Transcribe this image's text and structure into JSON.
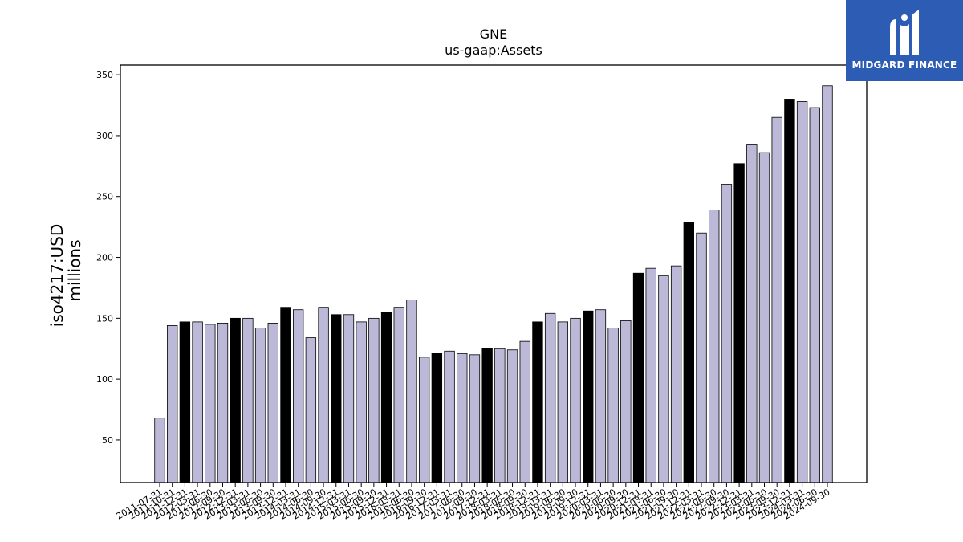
{
  "logo": {
    "text": "MIDGARD FINANCE",
    "icon": "midgard-logo-icon",
    "background": "#2c5cb4"
  },
  "chart_data": {
    "type": "bar",
    "title": "GNE",
    "subtitle": "us-gaap:Assets",
    "ylabel": [
      "iso4217:USD",
      "millions"
    ],
    "xlabel": "",
    "ylim": [
      15,
      358
    ],
    "yticks": [
      50,
      100,
      150,
      200,
      250,
      300,
      350
    ],
    "grid": false,
    "colors": {
      "regular": "#bcb8d8",
      "highlight": "#000000",
      "edge": "#000000"
    },
    "categories": [
      "2011-07-31",
      "2011-10-31",
      "2011-12-31",
      "2012-03-31",
      "2012-06-30",
      "2012-09-30",
      "2012-12-31",
      "2013-03-31",
      "2013-06-30",
      "2013-09-30",
      "2013-12-31",
      "2014-03-31",
      "2014-06-30",
      "2014-09-30",
      "2014-12-31",
      "2015-03-31",
      "2015-06-30",
      "2015-09-30",
      "2015-12-31",
      "2016-03-31",
      "2016-06-30",
      "2016-09-30",
      "2016-12-31",
      "2017-03-31",
      "2017-06-30",
      "2017-09-30",
      "2017-12-31",
      "2018-03-31",
      "2018-06-30",
      "2018-09-30",
      "2018-12-31",
      "2019-03-31",
      "2019-06-30",
      "2019-09-30",
      "2019-12-31",
      "2020-03-31",
      "2020-06-30",
      "2020-09-30",
      "2020-12-31",
      "2021-03-31",
      "2021-06-30",
      "2021-09-30",
      "2021-12-31",
      "2022-03-31",
      "2022-06-30",
      "2022-09-30",
      "2022-12-31",
      "2023-03-31",
      "2023-06-30",
      "2023-09-30",
      "2023-12-31",
      "2024-03-31",
      "2024-06-30",
      "2024-09-30"
    ],
    "values": [
      68,
      144,
      147,
      147,
      145,
      146,
      150,
      150,
      142,
      146,
      159,
      157,
      134,
      159,
      153,
      153,
      147,
      150,
      155,
      159,
      165,
      118,
      121,
      123,
      121,
      120,
      125,
      125,
      124,
      131,
      147,
      154,
      147,
      150,
      156,
      157,
      142,
      148,
      187,
      191,
      185,
      193,
      229,
      220,
      239,
      260,
      277,
      293,
      286,
      315,
      330,
      328,
      323,
      341
    ],
    "highlight": [
      false,
      false,
      true,
      false,
      false,
      false,
      true,
      false,
      false,
      false,
      true,
      false,
      false,
      false,
      true,
      false,
      false,
      false,
      true,
      false,
      false,
      false,
      true,
      false,
      false,
      false,
      true,
      false,
      false,
      false,
      true,
      false,
      false,
      false,
      true,
      false,
      false,
      false,
      true,
      false,
      false,
      false,
      true,
      false,
      false,
      false,
      true,
      false,
      false,
      false,
      true,
      false,
      false,
      false
    ]
  }
}
